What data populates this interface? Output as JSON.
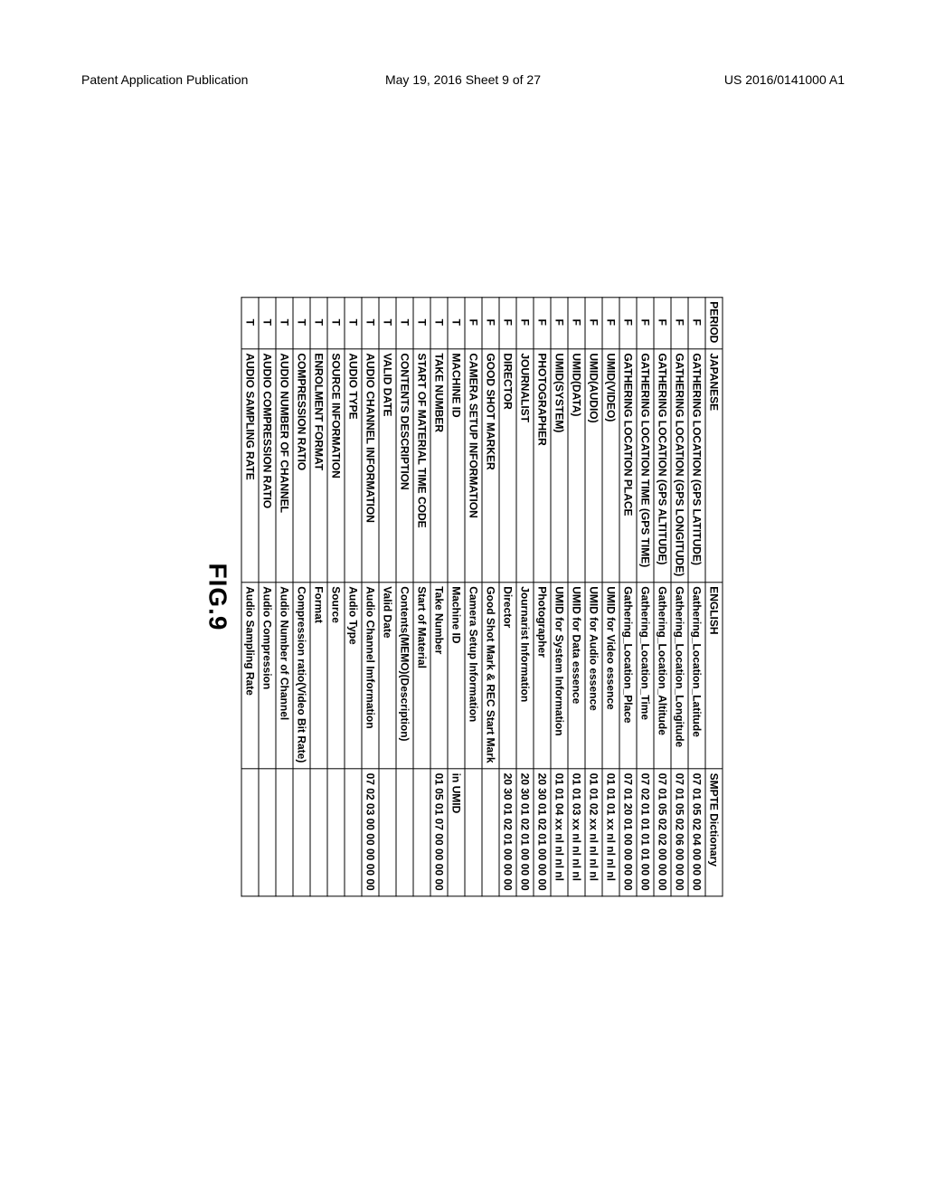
{
  "header": {
    "left": "Patent Application Publication",
    "center": "May 19, 2016  Sheet 9 of 27",
    "right": "US 2016/0141000 A1"
  },
  "figure_label": "FIG.9",
  "columns": {
    "period": "PERIOD",
    "japanese": "JAPANESE",
    "english": "ENGLISH",
    "smpte": "SMPTE Dictionary"
  },
  "rows": [
    {
      "p": "F",
      "jp": "GATHERING LOCATION (GPS LATITUDE)",
      "en": "Gathering_Location_Latitude",
      "sm": "07 01 05 02 04 00 00 00"
    },
    {
      "p": "F",
      "jp": "GATHERING LOCATION (GPS LONGITUDE)",
      "en": "Gathering_Location_Longitude",
      "sm": "07 01 05 02 06 00 00 00"
    },
    {
      "p": "F",
      "jp": "GATHERING LOCATION (GPS ALTITUDE)",
      "en": "Gathering_Location_Altitude",
      "sm": "07 01 05 02 02 00 00 00"
    },
    {
      "p": "F",
      "jp": "GATHERING LOCATION TIME (GPS TIME)",
      "en": "Gathering_Location_Time",
      "sm": "07 02 01 01 01 01 00 00"
    },
    {
      "p": "F",
      "jp": "GATHERING LOCATION PLACE",
      "en": "Gathering_Location_Place",
      "sm": "07 01 20 01 00 00 00 00"
    },
    {
      "p": "F",
      "jp": "UMID(VIDEO)",
      "en": "UMID for Video essence",
      "sm": "01 01 01 xx nl nl nl nl"
    },
    {
      "p": "F",
      "jp": "UMID(AUDIO)",
      "en": "UMID for Audio essence",
      "sm": "01 01 02 xx nl nl nl nl"
    },
    {
      "p": "F",
      "jp": "UMID(DATA)",
      "en": "UMID for Data essence",
      "sm": "01 01 03 xx nl nl nl nl"
    },
    {
      "p": "F",
      "jp": "UMID(SYSTEM)",
      "en": "UMID for System Information",
      "sm": "01 01 04 xx nl nl nl nl"
    },
    {
      "p": "F",
      "jp": "PHOTOGRAPHER",
      "en": "Photographer",
      "sm": "20 30 01 02 01 00 00 00"
    },
    {
      "p": "F",
      "jp": "JOURNALIST",
      "en": "Journarist Information",
      "sm": "20 30 01 02 01 00 00 00"
    },
    {
      "p": "F",
      "jp": "DIRECTOR",
      "en": "Director",
      "sm": "20 30 01 02 01 00 00 00"
    },
    {
      "p": "F",
      "jp": "GOOD SHOT MARKER",
      "en": "Good Shot Mark & REC Start Mark",
      "sm": ""
    },
    {
      "p": "F",
      "jp": "CAMERA SETUP INFORMATION",
      "en": "Camera Setup Information",
      "sm": ""
    },
    {
      "p": "T",
      "jp": "MACHINE ID",
      "en": "Machine ID",
      "sm": "in UMID"
    },
    {
      "p": "T",
      "jp": "TAKE NUMBER",
      "en": "Take Number",
      "sm": "01 05 01 07 00 00 00 00"
    },
    {
      "p": "T",
      "jp": "START OF MATERIAL TIME CODE",
      "en": "Start of Material",
      "sm": ""
    },
    {
      "p": "T",
      "jp": "CONTENTS DESCRIPTION",
      "en": "Contents(MEMO)(Description)",
      "sm": ""
    },
    {
      "p": "T",
      "jp": "VALID DATE",
      "en": "Valid Date",
      "sm": ""
    },
    {
      "p": "T",
      "jp": "AUDIO CHANNEL INFORMATION",
      "en": "Audio Channel Imformation",
      "sm": "07 02 03 00 00 00 00 00"
    },
    {
      "p": "T",
      "jp": "AUDIO TYPE",
      "en": "Audio Type",
      "sm": ""
    },
    {
      "p": "T",
      "jp": "SOURCE INFORMATION",
      "en": "Source",
      "sm": ""
    },
    {
      "p": "T",
      "jp": "ENROLMENT FORMAT",
      "en": "Format",
      "sm": ""
    },
    {
      "p": "T",
      "jp": "COMPRESSION RATIO",
      "en": "Compression ratio(Video Bit Rate)",
      "sm": ""
    },
    {
      "p": "T",
      "jp": "AUDIO NUMBER OF CHANNEL",
      "en": "Audio Number of Channel",
      "sm": ""
    },
    {
      "p": "T",
      "jp": "AUDIO COMPRESSION RATIO",
      "en": "Audio Compression",
      "sm": ""
    },
    {
      "p": "T",
      "jp": "AUDIO SAMPLING RATE",
      "en": "Audio Sampling Rate",
      "sm": ""
    }
  ]
}
